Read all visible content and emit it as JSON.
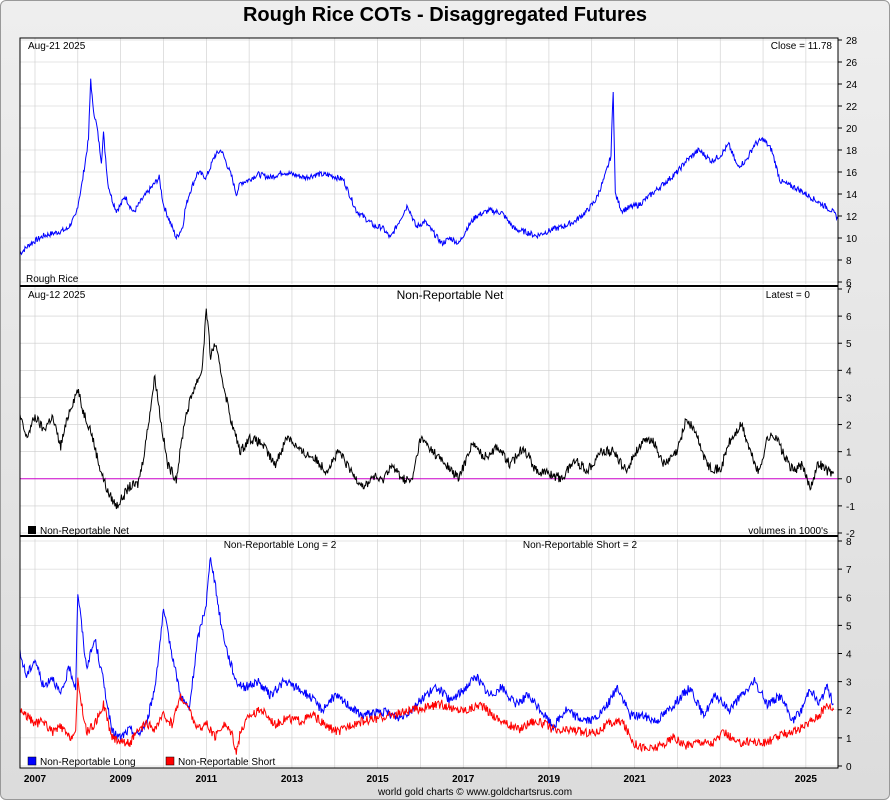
{
  "page": {
    "title": "Rough Rice COTs - Disaggregated Futures",
    "footer": "world gold charts © www.goldchartsrus.com",
    "colors": {
      "price": "#0000ff",
      "net": "#000000",
      "zero": "#cc00cc",
      "long": "#0000ff",
      "short": "#ff0000",
      "grid": "#cccccc"
    }
  },
  "chart_data": [
    {
      "type": "line",
      "panel": "price",
      "date_label": "Aug-21  2025",
      "latest_label": "Close = 11.78",
      "legend": "Rough Rice",
      "ylim": [
        6,
        28
      ],
      "yticks": [
        6,
        8,
        10,
        12,
        14,
        16,
        18,
        20,
        22,
        24,
        26,
        28
      ],
      "xlim": [
        2006.65,
        2025.75
      ],
      "series": [
        {
          "name": "Rough Rice",
          "color": "#0000ff",
          "x": [
            2006.65,
            2006.9,
            2007.2,
            2007.5,
            2007.75,
            2007.95,
            2008.1,
            2008.25,
            2008.3,
            2008.35,
            2008.45,
            2008.55,
            2008.6,
            2008.7,
            2008.8,
            2008.9,
            2009.0,
            2009.1,
            2009.3,
            2009.5,
            2009.7,
            2009.9,
            2010.0,
            2010.1,
            2010.3,
            2010.45,
            2010.5,
            2010.6,
            2010.8,
            2011.0,
            2011.2,
            2011.35,
            2011.6,
            2011.7,
            2011.8,
            2012.0,
            2012.2,
            2012.5,
            2012.8,
            2013.0,
            2013.3,
            2013.6,
            2013.9,
            2014.2,
            2014.5,
            2014.8,
            2014.95,
            2015.1,
            2015.3,
            2015.5,
            2015.7,
            2015.9,
            2016.1,
            2016.3,
            2016.5,
            2016.7,
            2016.9,
            2017.1,
            2017.3,
            2017.6,
            2017.9,
            2018.2,
            2018.5,
            2018.7,
            2018.9,
            2019.1,
            2019.3,
            2019.6,
            2019.9,
            2020.1,
            2020.3,
            2020.45,
            2020.5,
            2020.55,
            2020.7,
            2020.9,
            2021.1,
            2021.4,
            2021.7,
            2022.0,
            2022.2,
            2022.5,
            2022.8,
            2023.0,
            2023.2,
            2023.4,
            2023.6,
            2023.8,
            2024.0,
            2024.2,
            2024.4,
            2024.5,
            2024.6,
            2024.8,
            2025.0,
            2025.2,
            2025.4,
            2025.6,
            2025.75
          ],
          "y": [
            8.6,
            9.5,
            10.2,
            10.5,
            10.8,
            12.0,
            15.0,
            19.0,
            24.5,
            22.0,
            20.0,
            17.0,
            19.5,
            15.0,
            13.5,
            12.5,
            13.0,
            13.8,
            12.3,
            13.5,
            14.5,
            15.5,
            13.0,
            12.0,
            10.0,
            11.0,
            12.5,
            14.0,
            16.0,
            15.5,
            17.5,
            18.0,
            15.5,
            14.0,
            15.0,
            15.3,
            15.8,
            15.5,
            16.0,
            15.8,
            15.5,
            15.8,
            15.7,
            15.3,
            12.5,
            11.5,
            11.0,
            11.0,
            10.0,
            11.5,
            13.0,
            11.0,
            11.5,
            10.5,
            9.5,
            10.0,
            9.5,
            11.0,
            12.0,
            12.5,
            12.3,
            10.8,
            10.5,
            10.2,
            10.5,
            10.8,
            11.0,
            11.5,
            12.5,
            13.5,
            15.5,
            17.5,
            23.5,
            14.0,
            12.5,
            12.8,
            13.0,
            14.0,
            15.0,
            16.0,
            17.0,
            18.0,
            17.0,
            17.5,
            18.5,
            16.5,
            17.0,
            18.5,
            19.0,
            18.0,
            15.2,
            15.0,
            14.8,
            14.5,
            14.0,
            13.5,
            13.0,
            12.5,
            11.8
          ]
        }
      ]
    },
    {
      "type": "line",
      "panel": "net",
      "date_label": "Aug-12  2025",
      "title": "Non-Reportable Net",
      "latest_label": "Latest = 0",
      "legend": "Non-Reportable Net",
      "units_note": "volumes in 1000's",
      "ylim": [
        -2,
        7
      ],
      "yticks": [
        -2,
        -1,
        0,
        1,
        2,
        3,
        4,
        5,
        6,
        7
      ],
      "xlim": [
        2006.65,
        2025.75
      ],
      "series": [
        {
          "name": "Non-Reportable Net",
          "color": "#000000",
          "x": [
            2006.65,
            2006.8,
            2007.0,
            2007.2,
            2007.4,
            2007.6,
            2007.8,
            2008.0,
            2008.1,
            2008.3,
            2008.5,
            2008.7,
            2008.9,
            2009.0,
            2009.2,
            2009.4,
            2009.5,
            2009.6,
            2009.8,
            2009.95,
            2010.1,
            2010.3,
            2010.5,
            2010.7,
            2010.9,
            2011.0,
            2011.1,
            2011.2,
            2011.4,
            2011.6,
            2011.8,
            2012.0,
            2012.3,
            2012.6,
            2012.9,
            2013.2,
            2013.5,
            2013.8,
            2014.1,
            2014.4,
            2014.7,
            2014.9,
            2015.1,
            2015.3,
            2015.6,
            2015.8,
            2016.0,
            2016.3,
            2016.6,
            2016.9,
            2017.2,
            2017.5,
            2017.8,
            2018.1,
            2018.4,
            2018.7,
            2019.0,
            2019.3,
            2019.6,
            2019.9,
            2020.2,
            2020.5,
            2020.8,
            2021.1,
            2021.4,
            2021.7,
            2022.0,
            2022.2,
            2022.4,
            2022.7,
            2023.0,
            2023.2,
            2023.5,
            2023.7,
            2023.9,
            2024.1,
            2024.3,
            2024.5,
            2024.7,
            2024.9,
            2025.1,
            2025.3,
            2025.5,
            2025.65
          ],
          "y": [
            2.3,
            1.5,
            2.3,
            1.8,
            2.3,
            1.2,
            2.5,
            3.3,
            2.6,
            1.8,
            0.5,
            -0.5,
            -1.0,
            -0.8,
            -0.3,
            -0.2,
            0.5,
            1.5,
            3.8,
            2.0,
            0.5,
            0.0,
            2.2,
            3.3,
            4.0,
            6.3,
            4.5,
            5.0,
            3.5,
            2.0,
            1.0,
            1.5,
            1.3,
            0.5,
            1.6,
            1.0,
            0.8,
            0.3,
            1.0,
            0.2,
            -0.3,
            0.1,
            -0.1,
            0.5,
            0.0,
            -0.1,
            1.5,
            1.0,
            0.5,
            0.0,
            1.3,
            0.8,
            1.2,
            0.5,
            1.2,
            0.3,
            0.2,
            0.0,
            0.7,
            0.3,
            1.0,
            1.0,
            0.3,
            1.2,
            1.5,
            0.5,
            1.0,
            2.2,
            1.8,
            0.5,
            0.3,
            1.3,
            2.0,
            1.0,
            0.2,
            1.5,
            1.6,
            0.8,
            0.3,
            0.5,
            -0.3,
            0.6,
            0.3,
            0.2
          ]
        }
      ]
    },
    {
      "type": "line",
      "panel": "long-short",
      "label_long": "Non-Reportable Long = 2",
      "label_short": "Non-Reportable Short = 2",
      "ylim": [
        0,
        8
      ],
      "yticks": [
        0,
        1,
        2,
        3,
        4,
        5,
        6,
        7,
        8
      ],
      "xlim": [
        2006.65,
        2025.75
      ],
      "x_ticks": [
        "2007",
        "2009",
        "2011",
        "2013",
        "2015",
        "2017",
        "2019",
        "2021",
        "2023",
        "2025"
      ],
      "x_tick_values": [
        2007,
        2009,
        2011,
        2013,
        2015,
        2017,
        2019,
        2021,
        2023,
        2025
      ],
      "series": [
        {
          "name": "Non-Reportable Long",
          "color": "#0000ff",
          "x": [
            2006.65,
            2006.8,
            2007.0,
            2007.2,
            2007.4,
            2007.6,
            2007.8,
            2007.95,
            2008.0,
            2008.2,
            2008.4,
            2008.6,
            2008.8,
            2009.0,
            2009.2,
            2009.4,
            2009.6,
            2009.8,
            2010.0,
            2010.2,
            2010.4,
            2010.6,
            2010.8,
            2011.0,
            2011.1,
            2011.2,
            2011.35,
            2011.5,
            2011.7,
            2011.9,
            2012.2,
            2012.5,
            2012.8,
            2013.1,
            2013.4,
            2013.7,
            2014.0,
            2014.3,
            2014.6,
            2014.9,
            2015.2,
            2015.5,
            2015.8,
            2016.1,
            2016.4,
            2016.7,
            2017.0,
            2017.3,
            2017.6,
            2017.9,
            2018.2,
            2018.5,
            2018.8,
            2019.1,
            2019.4,
            2019.7,
            2020.0,
            2020.3,
            2020.6,
            2020.9,
            2021.2,
            2021.5,
            2021.8,
            2022.1,
            2022.3,
            2022.6,
            2022.9,
            2023.2,
            2023.5,
            2023.8,
            2024.1,
            2024.4,
            2024.7,
            2024.9,
            2025.1,
            2025.3,
            2025.5,
            2025.65
          ],
          "y": [
            4.0,
            3.2,
            3.8,
            2.8,
            3.2,
            2.5,
            3.5,
            2.8,
            6.2,
            3.5,
            4.5,
            3.0,
            1.2,
            1.0,
            1.3,
            1.1,
            1.5,
            2.8,
            5.5,
            4.0,
            2.5,
            2.0,
            4.5,
            5.8,
            7.5,
            6.5,
            5.0,
            4.0,
            3.0,
            2.8,
            3.0,
            2.5,
            3.0,
            2.8,
            2.5,
            2.0,
            2.5,
            2.2,
            1.8,
            1.9,
            1.9,
            1.7,
            2.0,
            2.5,
            2.8,
            2.3,
            2.7,
            3.2,
            2.5,
            2.8,
            2.2,
            2.5,
            2.0,
            1.4,
            2.0,
            1.7,
            1.6,
            2.0,
            2.8,
            1.8,
            1.8,
            1.6,
            2.0,
            2.5,
            2.8,
            1.8,
            2.5,
            2.0,
            2.5,
            3.0,
            2.2,
            2.5,
            1.6,
            2.0,
            2.8,
            2.2,
            2.8,
            2.2
          ]
        },
        {
          "name": "Non-Reportable Short",
          "color": "#ff0000",
          "x": [
            2006.65,
            2006.8,
            2007.0,
            2007.2,
            2007.4,
            2007.6,
            2007.8,
            2007.95,
            2008.0,
            2008.2,
            2008.4,
            2008.6,
            2008.8,
            2009.0,
            2009.2,
            2009.4,
            2009.6,
            2009.8,
            2010.0,
            2010.2,
            2010.4,
            2010.6,
            2010.8,
            2011.0,
            2011.2,
            2011.4,
            2011.6,
            2011.7,
            2011.8,
            2012.0,
            2012.3,
            2012.6,
            2012.9,
            2013.2,
            2013.5,
            2013.8,
            2014.1,
            2014.4,
            2014.7,
            2015.0,
            2015.3,
            2015.6,
            2015.9,
            2016.2,
            2016.5,
            2016.8,
            2017.1,
            2017.4,
            2017.7,
            2018.0,
            2018.3,
            2018.6,
            2018.9,
            2019.2,
            2019.5,
            2019.8,
            2020.1,
            2020.4,
            2020.7,
            2021.0,
            2021.3,
            2021.6,
            2021.9,
            2022.2,
            2022.5,
            2022.8,
            2023.1,
            2023.4,
            2023.7,
            2024.0,
            2024.3,
            2024.6,
            2024.9,
            2025.1,
            2025.3,
            2025.5,
            2025.65
          ],
          "y": [
            2.0,
            1.8,
            1.5,
            1.6,
            1.2,
            1.4,
            1.0,
            1.2,
            3.0,
            1.2,
            1.5,
            2.2,
            1.0,
            0.9,
            0.8,
            1.2,
            1.5,
            1.3,
            1.8,
            1.5,
            2.5,
            2.0,
            1.3,
            1.5,
            1.0,
            1.5,
            1.2,
            0.5,
            1.2,
            1.8,
            2.0,
            1.5,
            1.7,
            1.6,
            1.8,
            1.4,
            1.2,
            1.5,
            1.6,
            1.7,
            1.8,
            1.9,
            2.0,
            2.1,
            2.2,
            2.0,
            2.0,
            2.2,
            1.8,
            1.5,
            1.3,
            1.6,
            1.5,
            1.2,
            1.3,
            1.2,
            1.2,
            1.5,
            1.6,
            0.8,
            0.6,
            0.7,
            1.0,
            0.7,
            0.9,
            0.8,
            1.2,
            0.8,
            0.9,
            0.8,
            1.0,
            1.2,
            1.3,
            1.6,
            1.8,
            2.2,
            2.0
          ]
        }
      ]
    }
  ]
}
